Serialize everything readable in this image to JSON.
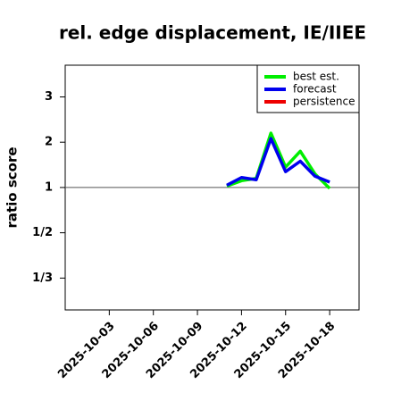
{
  "chart_data": {
    "type": "line",
    "title": "rel. edge displacement, IE/IIEE",
    "y_label": "ratio score",
    "y_scale": "ratio",
    "ylim": [
      0.27,
      3.7
    ],
    "yticks": [
      3,
      2,
      1,
      {
        "value": 0.5,
        "label": "1/2"
      },
      {
        "value": 0.3333,
        "label": "1/3"
      }
    ],
    "reference_line": 1,
    "xlim": [
      "2025-09-30",
      "2025-10-20"
    ],
    "xticks": [
      "2025-10-03",
      "2025-10-06",
      "2025-10-09",
      "2025-10-12",
      "2025-10-15",
      "2025-10-18"
    ],
    "xtick_colors": [
      "#000000",
      "#000000",
      "#228b22",
      "#000000",
      "#000000",
      "#000000"
    ],
    "x": [
      "2025-10-11",
      "2025-10-12",
      "2025-10-13",
      "2025-10-14",
      "2025-10-15",
      "2025-10-16",
      "2025-10-17",
      "2025-10-18"
    ],
    "legend": "top-right",
    "series": [
      {
        "name": "best est.",
        "color": "#00ee00",
        "values": [
          1.03,
          1.15,
          1.2,
          2.2,
          1.45,
          1.8,
          1.3,
          0.98
        ]
      },
      {
        "name": "forecast",
        "color": "#0000ee",
        "values": [
          1.05,
          1.22,
          1.17,
          2.08,
          1.35,
          1.58,
          1.25,
          1.12
        ]
      },
      {
        "name": "persistence",
        "color": "#ee0000",
        "values": [
          null,
          null,
          null,
          null,
          null,
          null,
          null,
          null
        ]
      }
    ]
  }
}
